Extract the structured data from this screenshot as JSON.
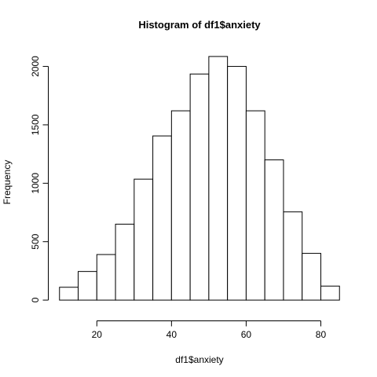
{
  "chart_data": {
    "type": "bar",
    "title": "Histogram of df1$anxiety",
    "xlabel": "df1$anxiety",
    "ylabel": "Frequency",
    "bin_edges": [
      10,
      15,
      20,
      25,
      30,
      35,
      40,
      45,
      50,
      55,
      60,
      65,
      70,
      75,
      80,
      85
    ],
    "values": [
      110,
      245,
      390,
      650,
      1035,
      1405,
      1620,
      1935,
      2085,
      2000,
      1620,
      1200,
      755,
      400,
      120
    ],
    "x_ticks": [
      20,
      40,
      60,
      80
    ],
    "y_ticks": [
      0,
      500,
      1000,
      1500,
      2000
    ],
    "xlim": [
      10,
      85
    ],
    "ylim": [
      0,
      2085
    ],
    "grid": false,
    "legend": "none"
  }
}
